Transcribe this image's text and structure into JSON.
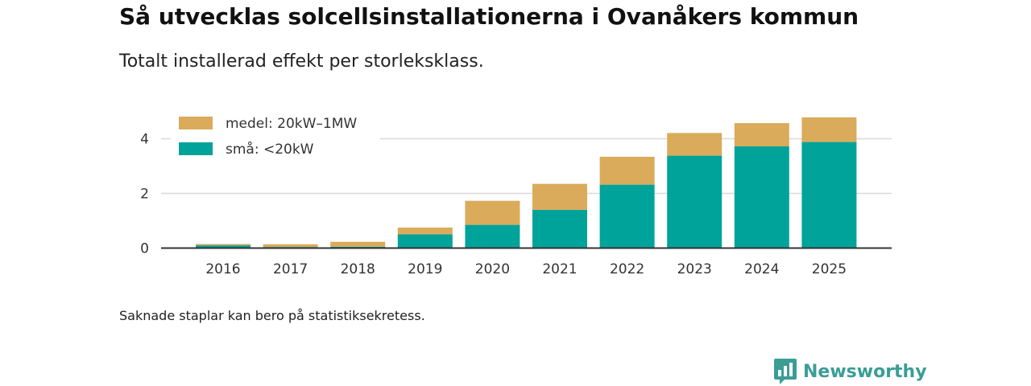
{
  "header": {
    "title": "Så utvecklas solcellsinstallationerna i Ovanåkers kommun",
    "subtitle": "Totalt installerad effekt per storleksklass."
  },
  "footnote": "Saknade staplar kan bero på statistiksekretess.",
  "brand": {
    "name": "Newsworthy",
    "color": "#3a9d96"
  },
  "chart_data": {
    "type": "bar",
    "stacked": true,
    "title": "Så utvecklas solcellsinstallationerna i Ovanåkers kommun",
    "subtitle": "Totalt installerad effekt per storleksklass.",
    "xlabel": "",
    "ylabel": "",
    "categories": [
      "2016",
      "2017",
      "2018",
      "2019",
      "2020",
      "2021",
      "2022",
      "2023",
      "2024",
      "2025"
    ],
    "series": [
      {
        "name": "små: <20kW",
        "color": "#00a39a",
        "values": [
          0.1,
          0.04,
          0.05,
          0.5,
          0.85,
          1.4,
          2.32,
          3.38,
          3.72,
          3.88
        ]
      },
      {
        "name": "medel: 20kW–1MW",
        "color": "#d9ab5b",
        "values": [
          0.05,
          0.1,
          0.18,
          0.25,
          0.88,
          0.95,
          1.02,
          0.83,
          0.85,
          0.9
        ]
      }
    ],
    "legend_order": [
      "medel: 20kW–1MW",
      "små: <20kW"
    ],
    "yticks": [
      0,
      2,
      4
    ],
    "ylim": [
      0,
      5.1
    ],
    "grid": true,
    "legend_position": "top-left"
  }
}
